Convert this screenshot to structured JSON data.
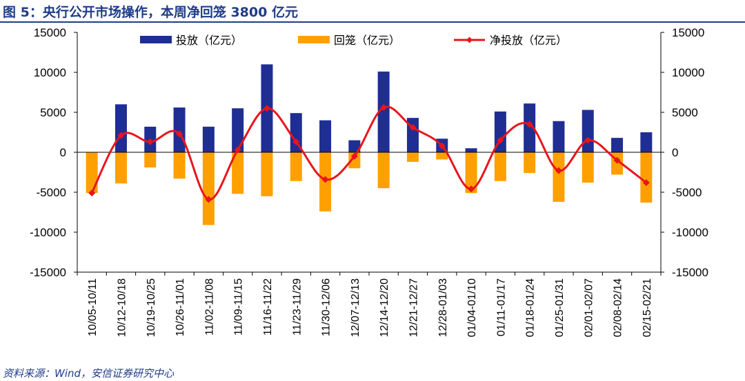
{
  "header": {
    "title": "图 5：央行公开市场操作，本周净回笼 3800 亿元"
  },
  "footer": {
    "source": "资料来源：Wind，安信证券研究中心"
  },
  "colors": {
    "accent": "#1F3C88",
    "injection": "#1F2E93",
    "withdrawal": "#FFA000",
    "net": "#E8141B"
  },
  "chart_data": {
    "type": "bar",
    "categories": [
      "10/05-10/11",
      "10/12-10/18",
      "10/19-10/25",
      "10/26-11/01",
      "11/02-11/08",
      "11/09-11/15",
      "11/16-11/22",
      "11/23-11/29",
      "11/30-12/06",
      "12/07-12/13",
      "12/14-12/20",
      "12/21-12/27",
      "12/28-01/03",
      "01/04-01/10",
      "01/11-01/17",
      "01/18-01/24",
      "01/25-01/31",
      "02/01-02/07",
      "02/08-02/14",
      "02/15-02/21"
    ],
    "series": [
      {
        "name": "投放（亿元）",
        "kind": "bar",
        "values": [
          0,
          6000,
          3200,
          5600,
          3200,
          5500,
          11000,
          4900,
          4000,
          1500,
          10100,
          4300,
          1700,
          500,
          5100,
          6100,
          3900,
          5300,
          1800,
          2500
        ]
      },
      {
        "name": "回笼（亿元）",
        "kind": "bar",
        "values": [
          -5100,
          -3900,
          -1900,
          -3300,
          -9100,
          -5200,
          -5500,
          -3600,
          -7400,
          -2000,
          -4500,
          -1200,
          -900,
          -5100,
          -3600,
          -2600,
          -6200,
          -3800,
          -2800,
          -6300
        ]
      },
      {
        "name": "净投放（亿元）",
        "kind": "line",
        "values": [
          -5100,
          2100,
          1300,
          2300,
          -5900,
          300,
          5500,
          1300,
          -3400,
          -500,
          5600,
          3100,
          800,
          -4600,
          1500,
          3500,
          -2300,
          1500,
          -1000,
          -3800
        ]
      }
    ],
    "y_ticks": [
      "15000",
      "10000",
      "5000",
      "0",
      "-5000",
      "-10000",
      "-15000"
    ],
    "ylim": [
      -15000,
      15000
    ],
    "legend": "top",
    "grid": false
  }
}
